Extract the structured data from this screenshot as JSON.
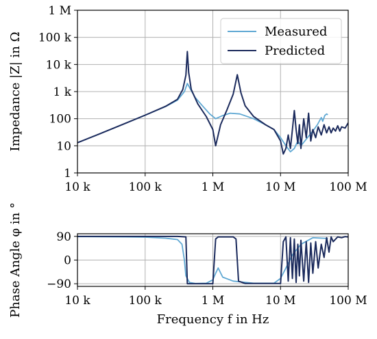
{
  "chart_data": [
    {
      "type": "line",
      "xscale": "log",
      "yscale": "log",
      "xlim": [
        10000,
        100000000
      ],
      "ylim": [
        1,
        1000000
      ],
      "grid": true,
      "ylabel": "Impedance |Z| in Ω",
      "xticklabels": [
        "10 k",
        "100 k",
        "1 M",
        "10 M",
        "100 M"
      ],
      "yticklabels": [
        "1",
        "10",
        "100",
        "1 k",
        "10 k",
        "100 k",
        "1 M"
      ],
      "legend": {
        "position": "upper right",
        "entries": [
          "Measured",
          "Predicted"
        ]
      },
      "series": [
        {
          "name": "Measured",
          "color": "#5fa8d3",
          "points": [
            [
              10000,
              13
            ],
            [
              20000,
              26
            ],
            [
              50000,
              66
            ],
            [
              100000,
              135
            ],
            [
              200000,
              280
            ],
            [
              300000,
              480
            ],
            [
              380000,
              1000
            ],
            [
              420000,
              2000
            ],
            [
              470000,
              1200
            ],
            [
              550000,
              600
            ],
            [
              700000,
              300
            ],
            [
              900000,
              150
            ],
            [
              1100000,
              100
            ],
            [
              1400000,
              130
            ],
            [
              1800000,
              160
            ],
            [
              2500000,
              150
            ],
            [
              4000000,
              100
            ],
            [
              6000000,
              60
            ],
            [
              8000000,
              40
            ],
            [
              10000000,
              20
            ],
            [
              12000000,
              10
            ],
            [
              14000000,
              6
            ],
            [
              16000000,
              8
            ],
            [
              18000000,
              15
            ],
            [
              20000000,
              10
            ],
            [
              25000000,
              20
            ],
            [
              30000000,
              35
            ],
            [
              35000000,
              60
            ],
            [
              40000000,
              110
            ],
            [
              42000000,
              80
            ],
            [
              45000000,
              130
            ],
            [
              48000000,
              150
            ],
            [
              50000000,
              140
            ]
          ]
        },
        {
          "name": "Predicted",
          "color": "#1b2a5c",
          "points": [
            [
              10000,
              13
            ],
            [
              20000,
              26
            ],
            [
              50000,
              66
            ],
            [
              100000,
              135
            ],
            [
              200000,
              285
            ],
            [
              300000,
              520
            ],
            [
              360000,
              1200
            ],
            [
              400000,
              4000
            ],
            [
              420000,
              30000
            ],
            [
              440000,
              5000
            ],
            [
              480000,
              1200
            ],
            [
              600000,
              350
            ],
            [
              800000,
              120
            ],
            [
              1000000,
              40
            ],
            [
              1100000,
              10
            ],
            [
              1300000,
              60
            ],
            [
              1600000,
              200
            ],
            [
              2000000,
              800
            ],
            [
              2300000,
              4200
            ],
            [
              2600000,
              900
            ],
            [
              3000000,
              300
            ],
            [
              4000000,
              120
            ],
            [
              6000000,
              60
            ],
            [
              8000000,
              40
            ],
            [
              10000000,
              15
            ],
            [
              11000000,
              5
            ],
            [
              12000000,
              8
            ],
            [
              13000000,
              25
            ],
            [
              14000000,
              8
            ],
            [
              15000000,
              40
            ],
            [
              16000000,
              200
            ],
            [
              17000000,
              40
            ],
            [
              18000000,
              12
            ],
            [
              19000000,
              60
            ],
            [
              20000000,
              8
            ],
            [
              22000000,
              100
            ],
            [
              24000000,
              20
            ],
            [
              26000000,
              160
            ],
            [
              28000000,
              15
            ],
            [
              30000000,
              40
            ],
            [
              33000000,
              20
            ],
            [
              36000000,
              50
            ],
            [
              40000000,
              25
            ],
            [
              44000000,
              60
            ],
            [
              48000000,
              30
            ],
            [
              52000000,
              50
            ],
            [
              56000000,
              30
            ],
            [
              60000000,
              45
            ],
            [
              65000000,
              35
            ],
            [
              70000000,
              55
            ],
            [
              75000000,
              35
            ],
            [
              80000000,
              50
            ],
            [
              90000000,
              45
            ],
            [
              100000000,
              70
            ]
          ]
        }
      ]
    },
    {
      "type": "line",
      "xscale": "log",
      "xlim": [
        10000,
        100000000
      ],
      "ylim": [
        -100,
        100
      ],
      "grid": true,
      "xlabel": "Frequency f in Hz",
      "ylabel": "Phase Angle φ in °",
      "xticklabels": [
        "10 k",
        "100 k",
        "1 M",
        "10 M",
        "100 M"
      ],
      "yticks": [
        90,
        0,
        -90
      ],
      "yticklabels": [
        "90",
        "0",
        "−90"
      ],
      "series": [
        {
          "name": "Measured",
          "color": "#5fa8d3",
          "points": [
            [
              10000,
              89
            ],
            [
              50000,
              88
            ],
            [
              100000,
              87
            ],
            [
              200000,
              83
            ],
            [
              300000,
              78
            ],
            [
              350000,
              60
            ],
            [
              380000,
              0
            ],
            [
              400000,
              -60
            ],
            [
              450000,
              -85
            ],
            [
              550000,
              -89
            ],
            [
              800000,
              -88
            ],
            [
              1000000,
              -75
            ],
            [
              1100000,
              -50
            ],
            [
              1200000,
              -30
            ],
            [
              1400000,
              -65
            ],
            [
              2000000,
              -80
            ],
            [
              4000000,
              -88
            ],
            [
              8000000,
              -88
            ],
            [
              10000000,
              -70
            ],
            [
              12000000,
              -30
            ],
            [
              15000000,
              20
            ],
            [
              20000000,
              60
            ],
            [
              30000000,
              85
            ],
            [
              50000000,
              82
            ]
          ]
        },
        {
          "name": "Predicted",
          "color": "#1b2a5c",
          "points": [
            [
              10000,
              90
            ],
            [
              100000,
              90
            ],
            [
              300000,
              90
            ],
            [
              400000,
              88
            ],
            [
              420000,
              -90
            ],
            [
              900000,
              -90
            ],
            [
              1000000,
              -90
            ],
            [
              1100000,
              80
            ],
            [
              1200000,
              88
            ],
            [
              2000000,
              88
            ],
            [
              2200000,
              80
            ],
            [
              2400000,
              -80
            ],
            [
              3000000,
              -89
            ],
            [
              8000000,
              -89
            ],
            [
              10000000,
              -89
            ],
            [
              11000000,
              70
            ],
            [
              12000000,
              88
            ],
            [
              13000000,
              -80
            ],
            [
              14000000,
              85
            ],
            [
              15000000,
              -70
            ],
            [
              16000000,
              80
            ],
            [
              17000000,
              -85
            ],
            [
              18000000,
              60
            ],
            [
              19000000,
              -60
            ],
            [
              20000000,
              75
            ],
            [
              22000000,
              -80
            ],
            [
              24000000,
              70
            ],
            [
              26000000,
              -85
            ],
            [
              28000000,
              65
            ],
            [
              30000000,
              -50
            ],
            [
              33000000,
              70
            ],
            [
              36000000,
              -30
            ],
            [
              40000000,
              60
            ],
            [
              44000000,
              10
            ],
            [
              48000000,
              85
            ],
            [
              52000000,
              30
            ],
            [
              56000000,
              88
            ],
            [
              60000000,
              70
            ],
            [
              70000000,
              88
            ],
            [
              80000000,
              85
            ],
            [
              90000000,
              89
            ],
            [
              100000000,
              88
            ]
          ]
        }
      ]
    }
  ]
}
